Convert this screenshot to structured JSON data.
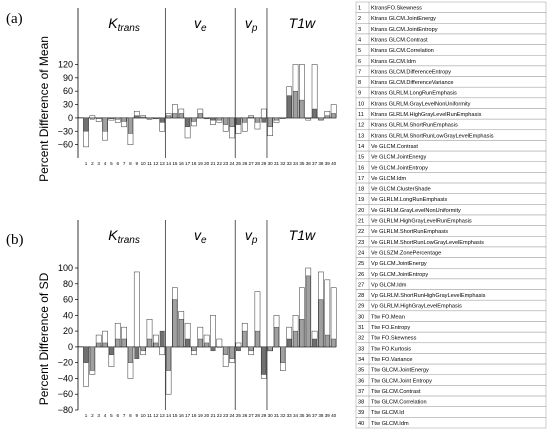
{
  "chart_data": [
    {
      "type": "bar",
      "panel_label": "(a)",
      "ylabel": "Percent Difference of Mean",
      "ylim": [
        -90,
        130
      ],
      "yticks": [
        -60,
        -30,
        0,
        30,
        60,
        90,
        120
      ],
      "groups": [
        {
          "label": "K",
          "sub": "trans",
          "start": 1,
          "end": 13
        },
        {
          "label": "v",
          "sub": "e",
          "start": 14,
          "end": 24
        },
        {
          "label": "v",
          "sub": "p",
          "start": 25,
          "end": 29
        },
        {
          "label": "T1w",
          "sub": "",
          "start": 30,
          "end": 40
        }
      ],
      "categories": [
        "1",
        "2",
        "3",
        "4",
        "5",
        "6",
        "7",
        "8",
        "9",
        "10",
        "11",
        "12",
        "13",
        "14",
        "15",
        "16",
        "17",
        "18",
        "19",
        "20",
        "21",
        "22",
        "23",
        "24",
        "25",
        "26",
        "27",
        "28",
        "29",
        "30",
        "31",
        "32",
        "33",
        "34",
        "35",
        "36",
        "37",
        "38",
        "39",
        "40"
      ],
      "series": [
        {
          "values": [
            -65,
            5,
            -8,
            -50,
            -5,
            -10,
            -20,
            -60,
            15,
            5,
            -3,
            -2,
            -30,
            10,
            30,
            20,
            -45,
            -18,
            20,
            -2,
            -15,
            -10,
            -30,
            -45,
            -35,
            -30,
            5,
            -25,
            20,
            -40,
            -10,
            0,
            70,
            120,
            120,
            -5,
            120,
            -5,
            15,
            30
          ]
        },
        {
          "values": [
            -30,
            -3,
            -2,
            -30,
            -2,
            -3,
            -8,
            -35,
            5,
            2,
            -1,
            -1,
            -10,
            5,
            10,
            10,
            -20,
            -8,
            10,
            -1,
            -5,
            -5,
            -15,
            -20,
            -15,
            -10,
            2,
            -10,
            -10,
            -20,
            -5,
            0,
            50,
            60,
            40,
            -2,
            20,
            -3,
            5,
            10
          ]
        }
      ]
    },
    {
      "type": "bar",
      "panel_label": "(b)",
      "ylabel": "Percent Difference of SD",
      "ylim": [
        -80,
        100
      ],
      "yticks": [
        -80,
        -60,
        -40,
        -20,
        0,
        20,
        40,
        60,
        80,
        100
      ],
      "groups": [
        {
          "label": "K",
          "sub": "trans",
          "start": 1,
          "end": 13
        },
        {
          "label": "v",
          "sub": "e",
          "start": 14,
          "end": 24
        },
        {
          "label": "v",
          "sub": "p",
          "start": 25,
          "end": 29
        },
        {
          "label": "T1w",
          "sub": "",
          "start": 30,
          "end": 40
        }
      ],
      "categories": [
        "1",
        "2",
        "3",
        "4",
        "5",
        "6",
        "7",
        "8",
        "9",
        "10",
        "11",
        "12",
        "13",
        "14",
        "15",
        "16",
        "17",
        "18",
        "19",
        "20",
        "21",
        "22",
        "23",
        "24",
        "25",
        "26",
        "27",
        "28",
        "29",
        "30",
        "31",
        "32",
        "33",
        "34",
        "35",
        "36",
        "37",
        "38",
        "39",
        "40"
      ],
      "series": [
        {
          "values": [
            -50,
            -35,
            15,
            20,
            -25,
            30,
            25,
            -40,
            95,
            -10,
            35,
            15,
            -10,
            -60,
            75,
            45,
            30,
            -10,
            25,
            15,
            40,
            10,
            -25,
            -20,
            5,
            30,
            -10,
            70,
            -40,
            -5,
            40,
            -30,
            25,
            40,
            75,
            100,
            20,
            95,
            85,
            75
          ]
        },
        {
          "values": [
            -20,
            -30,
            5,
            5,
            -10,
            10,
            10,
            -20,
            -15,
            -5,
            10,
            5,
            20,
            -30,
            60,
            35,
            10,
            -5,
            10,
            5,
            -5,
            0,
            -10,
            -15,
            -5,
            20,
            -5,
            20,
            -35,
            -5,
            25,
            -20,
            10,
            20,
            35,
            90,
            10,
            60,
            15,
            10
          ]
        }
      ]
    }
  ],
  "legend": [
    {
      "num": "1",
      "text": "KtransFO.Skewness"
    },
    {
      "num": "2",
      "text": "Ktrans GLCM.JointEnergy"
    },
    {
      "num": "3",
      "text": "Ktrans GLCM.JointEntropy"
    },
    {
      "num": "4",
      "text": "Ktrans GLCM.Contrast"
    },
    {
      "num": "5",
      "text": "Ktrans GLCM.Correlation"
    },
    {
      "num": "6",
      "text": "Ktrans GLCM.Idm"
    },
    {
      "num": "7",
      "text": "Ktrans GLCM.DifferenceEntropy"
    },
    {
      "num": "8",
      "text": "Ktrans GLCM.DifferenceVariance"
    },
    {
      "num": "9",
      "text": "Ktrans GLRLM.LongRunEmphasis"
    },
    {
      "num": "10",
      "text": "Ktrans GLRLM.GrayLevelNonUniformity"
    },
    {
      "num": "11",
      "text": "Ktrans GLRLM.HighGrayLevelRunEmphasis"
    },
    {
      "num": "12",
      "text": "Ktrans GLRLM.ShortRunEmphasis"
    },
    {
      "num": "13",
      "text": "Ktrans GLRLM.ShortRunLowGrayLevelEmphasis"
    },
    {
      "num": "14",
      "text": "Ve GLCM.Contrast"
    },
    {
      "num": "15",
      "text": "Ve GLCM.JointEnergy"
    },
    {
      "num": "16",
      "text": "Ve GLCM.JointEntropy"
    },
    {
      "num": "17",
      "text": "Ve GLCM.Idm"
    },
    {
      "num": "18",
      "text": "Ve GLCM.ClusterShade"
    },
    {
      "num": "19",
      "text": "Ve GLRLM.LongRunEmphasis"
    },
    {
      "num": "20",
      "text": "Ve GLRLM.GrayLevelNonUniformity"
    },
    {
      "num": "21",
      "text": "Ve GLRLM.HighGrayLevelRunEmphasis"
    },
    {
      "num": "22",
      "text": "Ve GLRLM.ShortRunEmphasis"
    },
    {
      "num": "23",
      "text": "Ve GLRLM.ShortRunLowGrayLevelEmphasis"
    },
    {
      "num": "24",
      "text": "Ve GLSZM.ZonePercentage"
    },
    {
      "num": "25",
      "text": "Vp GLCM.JointEnergy"
    },
    {
      "num": "26",
      "text": "Vp GLCM.JointEntropy"
    },
    {
      "num": "27",
      "text": "Vp GLCM.Idm"
    },
    {
      "num": "28",
      "text": "Vp GLRLM.ShortRunHighGrayLevelEmphasis"
    },
    {
      "num": "29",
      "text": "Vp GLRLM.HighGrayLevelEmphasis"
    },
    {
      "num": "30",
      "text": "Ttw FO.Mean"
    },
    {
      "num": "31",
      "text": "Ttw FO.Entropy"
    },
    {
      "num": "32",
      "text": "Ttw FO.Skewness"
    },
    {
      "num": "33",
      "text": "Ttw FO.Kurtosis"
    },
    {
      "num": "34",
      "text": "Ttw FO.Variance"
    },
    {
      "num": "35",
      "text": "Ttw GLCM.JointEnergy"
    },
    {
      "num": "36",
      "text": "Ttw GLCM.Joint Entropy"
    },
    {
      "num": "37",
      "text": "Ttw GLCM.Contrast"
    },
    {
      "num": "38",
      "text": "Ttw GLCM.Correlation"
    },
    {
      "num": "39",
      "text": "Ttw GLCM.Id"
    },
    {
      "num": "40",
      "text": "Ttw GLCM.Idm"
    }
  ],
  "colors": {
    "bar_outer": "#ffffff",
    "bar_inner": "#a0a0a0",
    "bar_inner_dark": "#707070",
    "stroke": "#333333"
  }
}
